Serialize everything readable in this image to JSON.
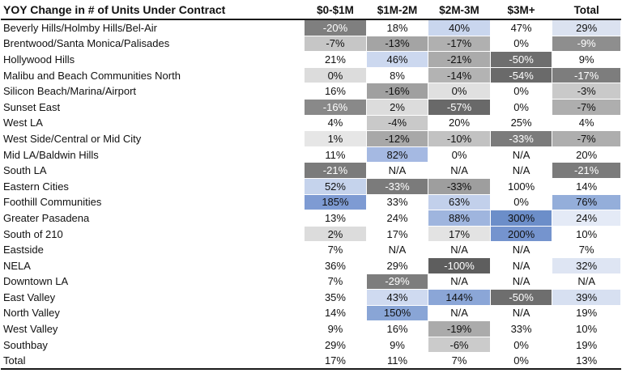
{
  "chart_data": {
    "type": "heatmap",
    "title": "YOY Change in # of Units Under Contract",
    "columns": [
      "$0-$1M",
      "$1M-2M",
      "$2M-3M",
      "$3M+",
      "Total"
    ],
    "legend": "gray shades = negative YOY change, blue shades = strongly positive YOY change, white = near neutral",
    "rows": [
      {
        "label": "Beverly Hills/Holmby Hills/Bel-Air",
        "cells": [
          {
            "v": "-20%",
            "bg": "#7f7f7f",
            "fg": "#ffffff"
          },
          {
            "v": "18%"
          },
          {
            "v": "40%",
            "bg": "#c9d6ee"
          },
          {
            "v": "47%"
          },
          {
            "v": "29%",
            "bg": "#dbe2f0"
          }
        ]
      },
      {
        "label": "Brentwood/Santa Monica/Palisades",
        "cells": [
          {
            "v": "-7%",
            "bg": "#c6c6c6"
          },
          {
            "v": "-13%",
            "bg": "#a4a4a4"
          },
          {
            "v": "-17%",
            "bg": "#b0b0b0"
          },
          {
            "v": "0%"
          },
          {
            "v": "-9%",
            "bg": "#8e8e8e",
            "fg": "#ffffff"
          }
        ]
      },
      {
        "label": "Hollywood Hills",
        "cells": [
          {
            "v": "21%"
          },
          {
            "v": "46%",
            "bg": "#ccd8ef"
          },
          {
            "v": "-21%",
            "bg": "#ababab"
          },
          {
            "v": "-50%",
            "bg": "#6e6e6e",
            "fg": "#ffffff"
          },
          {
            "v": "9%"
          }
        ]
      },
      {
        "label": "Malibu and Beach Communities North",
        "cells": [
          {
            "v": "0%",
            "bg": "#dcdcdc"
          },
          {
            "v": "8%"
          },
          {
            "v": "-14%",
            "bg": "#b3b3b3"
          },
          {
            "v": "-54%",
            "bg": "#6a6a6a",
            "fg": "#ffffff"
          },
          {
            "v": "-17%",
            "bg": "#7d7d7d",
            "fg": "#ffffff"
          }
        ]
      },
      {
        "label": "Silicon Beach/Marina/Airport",
        "cells": [
          {
            "v": "16%"
          },
          {
            "v": "-16%",
            "bg": "#a0a0a0"
          },
          {
            "v": "0%",
            "bg": "#e0e0e0"
          },
          {
            "v": "0%"
          },
          {
            "v": "-3%",
            "bg": "#c9c9c9"
          }
        ]
      },
      {
        "label": "Sunset East",
        "cells": [
          {
            "v": "-16%",
            "bg": "#898989",
            "fg": "#ffffff"
          },
          {
            "v": "2%",
            "bg": "#dcdcdc"
          },
          {
            "v": "-57%",
            "bg": "#696969",
            "fg": "#ffffff"
          },
          {
            "v": "0%"
          },
          {
            "v": "-7%",
            "bg": "#aeaeae"
          }
        ]
      },
      {
        "label": "West LA",
        "cells": [
          {
            "v": "4%"
          },
          {
            "v": "-4%",
            "bg": "#c9c9c9"
          },
          {
            "v": "20%"
          },
          {
            "v": "25%"
          },
          {
            "v": "4%"
          }
        ]
      },
      {
        "label": "West Side/Central or Mid City",
        "cells": [
          {
            "v": "1%",
            "bg": "#e6e6e6"
          },
          {
            "v": "-12%",
            "bg": "#a8a8a8"
          },
          {
            "v": "-10%",
            "bg": "#c2c2c2"
          },
          {
            "v": "-33%",
            "bg": "#7b7b7b",
            "fg": "#ffffff"
          },
          {
            "v": "-7%",
            "bg": "#aeaeae"
          }
        ]
      },
      {
        "label": "Mid LA/Baldwin Hills",
        "cells": [
          {
            "v": "11%"
          },
          {
            "v": "82%",
            "bg": "#a5b9e2"
          },
          {
            "v": "0%"
          },
          {
            "v": "N/A"
          },
          {
            "v": "20%"
          }
        ]
      },
      {
        "label": "South LA",
        "cells": [
          {
            "v": "-21%",
            "bg": "#7b7b7b",
            "fg": "#ffffff"
          },
          {
            "v": "N/A"
          },
          {
            "v": "N/A"
          },
          {
            "v": "N/A"
          },
          {
            "v": "-21%",
            "bg": "#7b7b7b",
            "fg": "#ffffff"
          }
        ]
      },
      {
        "label": "Eastern Cities",
        "cells": [
          {
            "v": "52%",
            "bg": "#c5d3ec"
          },
          {
            "v": "-33%",
            "bg": "#7b7b7b",
            "fg": "#ffffff"
          },
          {
            "v": "-33%",
            "bg": "#9e9e9e"
          },
          {
            "v": "100%"
          },
          {
            "v": "14%"
          }
        ]
      },
      {
        "label": "Foothill Communities",
        "cells": [
          {
            "v": "185%",
            "bg": "#7e9bd3"
          },
          {
            "v": "33%"
          },
          {
            "v": "63%",
            "bg": "#c2d0eb"
          },
          {
            "v": "0%"
          },
          {
            "v": "76%",
            "bg": "#94aeda"
          }
        ]
      },
      {
        "label": "Greater Pasadena",
        "cells": [
          {
            "v": "13%"
          },
          {
            "v": "24%"
          },
          {
            "v": "88%",
            "bg": "#9fb5de"
          },
          {
            "v": "300%",
            "bg": "#6c8ec9"
          },
          {
            "v": "24%",
            "bg": "#e4eaf6"
          }
        ]
      },
      {
        "label": "South of 210",
        "cells": [
          {
            "v": "2%",
            "bg": "#dcdcdc"
          },
          {
            "v": "17%"
          },
          {
            "v": "17%",
            "bg": "#e3e3e3"
          },
          {
            "v": "200%",
            "bg": "#7594ce"
          },
          {
            "v": "10%"
          }
        ]
      },
      {
        "label": "Eastside",
        "cells": [
          {
            "v": "7%"
          },
          {
            "v": "N/A"
          },
          {
            "v": "N/A"
          },
          {
            "v": "N/A"
          },
          {
            "v": "7%"
          }
        ]
      },
      {
        "label": "NELA",
        "cells": [
          {
            "v": "36%"
          },
          {
            "v": "29%"
          },
          {
            "v": "-100%",
            "bg": "#5e5e5e",
            "fg": "#ffffff"
          },
          {
            "v": "N/A"
          },
          {
            "v": "32%",
            "bg": "#dee5f3"
          }
        ]
      },
      {
        "label": "Downtown LA",
        "cells": [
          {
            "v": "7%"
          },
          {
            "v": "-29%",
            "bg": "#7d7d7d",
            "fg": "#ffffff"
          },
          {
            "v": "N/A"
          },
          {
            "v": "N/A"
          },
          {
            "v": "N/A"
          }
        ]
      },
      {
        "label": "East Valley",
        "cells": [
          {
            "v": "35%"
          },
          {
            "v": "43%",
            "bg": "#cfdaf0"
          },
          {
            "v": "144%",
            "bg": "#8ba6d7"
          },
          {
            "v": "-50%",
            "bg": "#6e6e6e",
            "fg": "#ffffff"
          },
          {
            "v": "39%",
            "bg": "#d7e0f1"
          }
        ]
      },
      {
        "label": "North Valley",
        "cells": [
          {
            "v": "14%"
          },
          {
            "v": "150%",
            "bg": "#89a5d6"
          },
          {
            "v": "N/A"
          },
          {
            "v": "N/A"
          },
          {
            "v": "19%"
          }
        ]
      },
      {
        "label": "West Valley",
        "cells": [
          {
            "v": "9%"
          },
          {
            "v": "16%"
          },
          {
            "v": "-19%",
            "bg": "#ababab"
          },
          {
            "v": "33%"
          },
          {
            "v": "10%"
          }
        ]
      },
      {
        "label": "Southbay",
        "cells": [
          {
            "v": "29%"
          },
          {
            "v": "9%"
          },
          {
            "v": "-6%",
            "bg": "#cbcbcb"
          },
          {
            "v": "0%"
          },
          {
            "v": "19%"
          }
        ]
      },
      {
        "label": "Total",
        "cells": [
          {
            "v": "17%"
          },
          {
            "v": "11%"
          },
          {
            "v": "7%"
          },
          {
            "v": "0%"
          },
          {
            "v": "13%"
          }
        ]
      }
    ]
  }
}
